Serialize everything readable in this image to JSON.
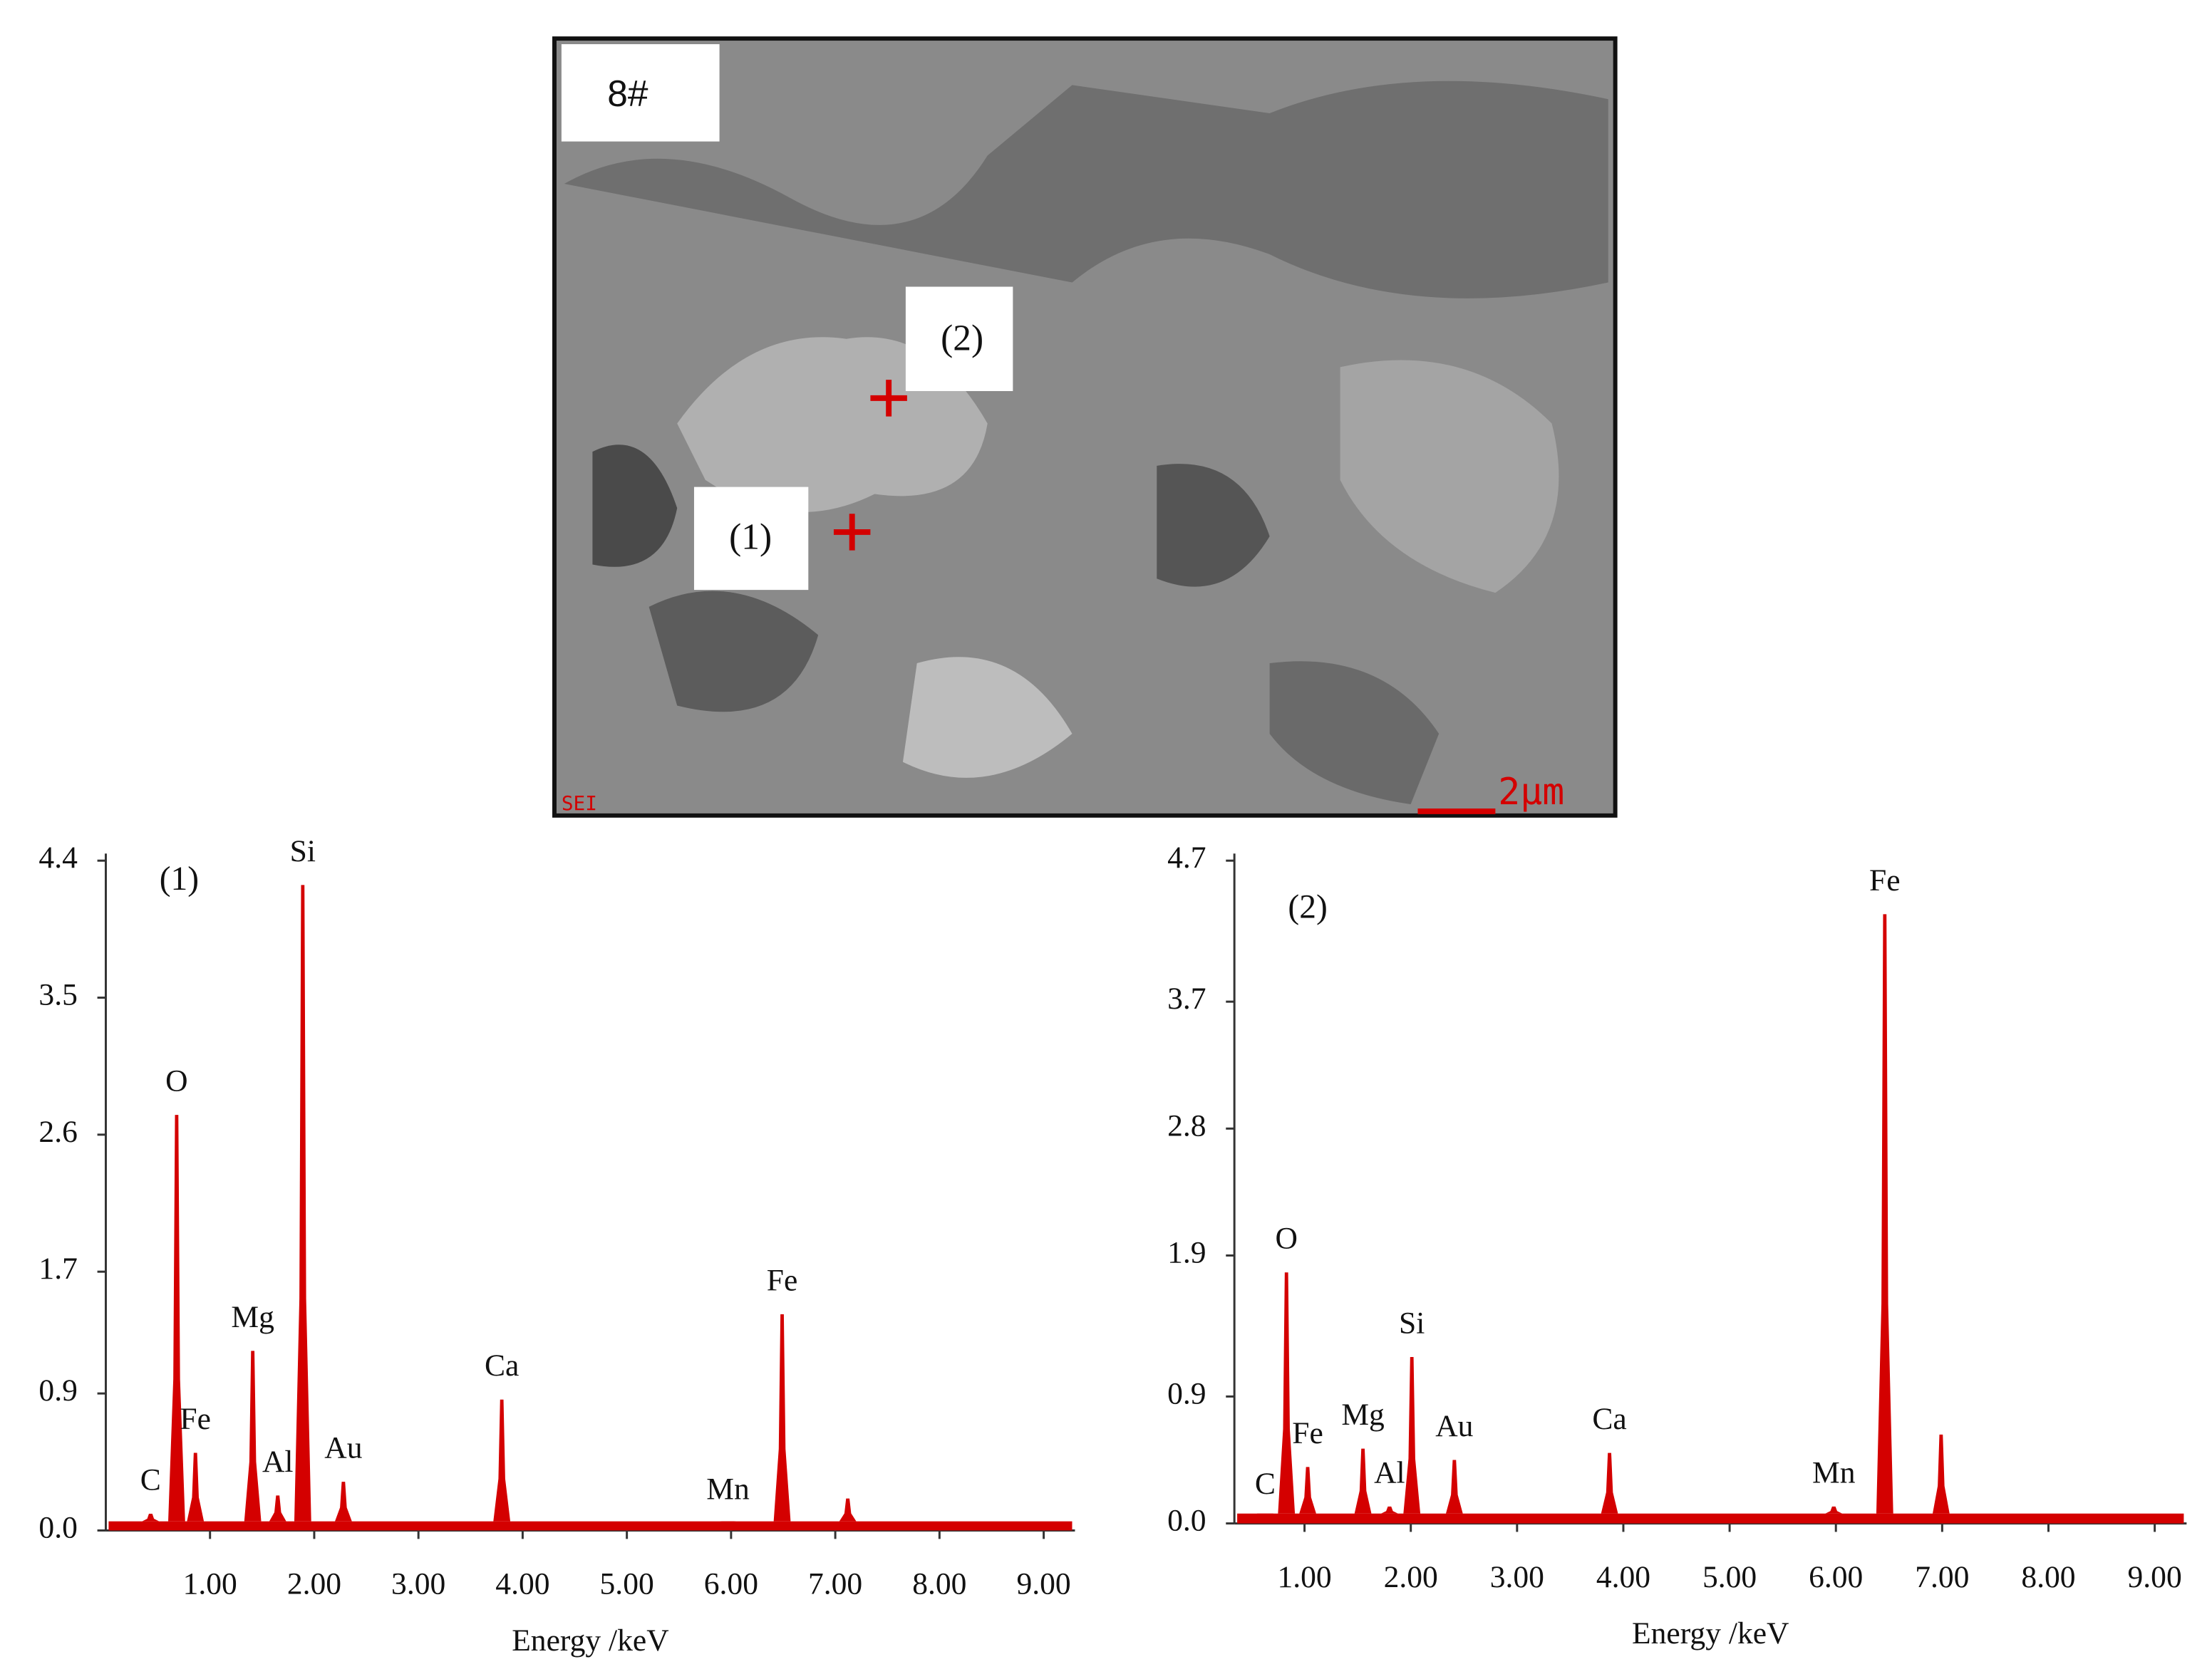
{
  "micrograph": {
    "label": "8#",
    "points": [
      "(1)",
      "(2)"
    ],
    "scale_bar": "2μm",
    "detector": "SEI"
  },
  "chart_data": [
    {
      "type": "spectrum",
      "title": "(1)",
      "x_label": "Energy /keV",
      "color": "#d40000",
      "x": [
        0.43,
        0.68,
        0.86,
        1.41,
        1.65,
        1.89,
        2.28,
        3.8,
        5.97,
        6.49,
        7.12
      ],
      "values": [
        0.11,
        2.73,
        0.51,
        1.18,
        0.23,
        4.24,
        0.32,
        0.86,
        0.05,
        1.42,
        0.21
      ],
      "peak_labels": [
        "C",
        "O",
        "Fe",
        "Mg",
        "Al",
        "Si",
        "Au",
        "Ca",
        "Mn",
        "Fe",
        null
      ],
      "background": 0.06,
      "xlim": [
        0,
        9.3
      ],
      "xticks": [
        {
          "value": 1,
          "label": "1.00"
        },
        {
          "value": 2,
          "label": "2.00"
        },
        {
          "value": 3,
          "label": "3.00"
        },
        {
          "value": 4,
          "label": "4.00"
        },
        {
          "value": 5,
          "label": "5.00"
        },
        {
          "value": 6,
          "label": "6.00"
        },
        {
          "value": 7,
          "label": "7.00"
        },
        {
          "value": 8,
          "label": "8.00"
        },
        {
          "value": 9,
          "label": "9.00"
        }
      ],
      "ylim": [
        0,
        4.4
      ],
      "yticks": [
        {
          "value": 0,
          "label": "0.0"
        },
        0.9,
        1.7,
        2.6,
        3.5,
        4.4
      ]
    },
    {
      "type": "spectrum",
      "title": "(2)",
      "x_label": "Energy /keV",
      "color": "#d40000",
      "x": [
        0.63,
        0.83,
        1.03,
        1.55,
        1.8,
        2.01,
        2.41,
        3.87,
        5.98,
        6.46,
        6.99
      ],
      "values": [
        0.04,
        1.78,
        0.4,
        0.53,
        0.12,
        1.18,
        0.45,
        0.5,
        0.12,
        4.32,
        0.63
      ],
      "peak_labels": [
        "C",
        "O",
        "Fe",
        "Mg",
        "Al",
        "Si",
        "Au",
        "Ca",
        "Mn",
        "Fe",
        null
      ],
      "background": 0.07,
      "xlim": [
        0.34,
        9.3
      ],
      "xticks": [
        {
          "value": 1,
          "label": "1.00"
        },
        {
          "value": 2,
          "label": "2.00"
        },
        {
          "value": 3,
          "label": "3.00"
        },
        {
          "value": 4,
          "label": "4.00"
        },
        {
          "value": 5,
          "label": "5.00"
        },
        {
          "value": 6,
          "label": "6.00"
        },
        {
          "value": 7,
          "label": "7.00"
        },
        {
          "value": 8,
          "label": "8.00"
        },
        {
          "value": 9,
          "label": "9.00"
        }
      ],
      "ylim": [
        0,
        4.7
      ],
      "yticks": [
        {
          "value": 0,
          "label": "0.0"
        },
        0.9,
        1.9,
        2.8,
        3.7,
        4.7
      ]
    }
  ]
}
